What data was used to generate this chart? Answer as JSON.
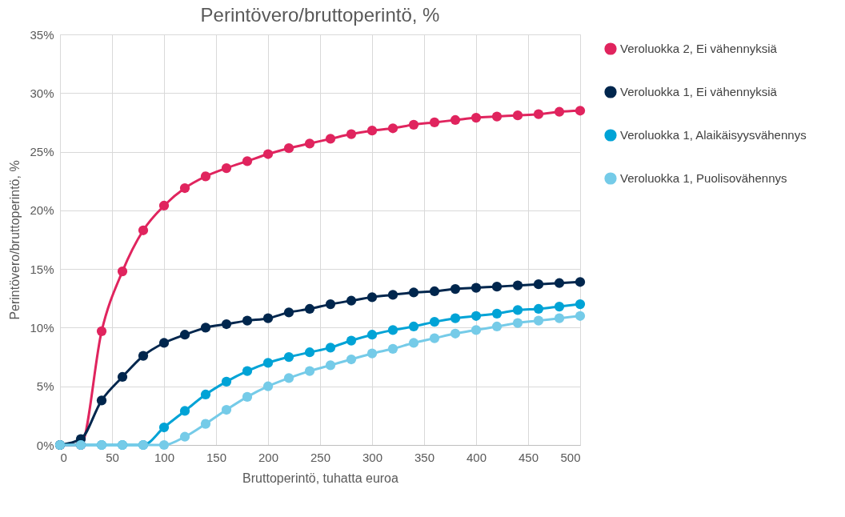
{
  "chart_data": {
    "type": "line",
    "title": "Perintövero/bruttoperintö, %",
    "xlabel": "Bruttoperintö, tuhatta euroa",
    "ylabel": "Perintövero/bruttoperintö, %",
    "x": [
      0,
      20,
      40,
      60,
      80,
      100,
      120,
      140,
      160,
      180,
      200,
      220,
      240,
      260,
      280,
      300,
      320,
      340,
      360,
      380,
      400,
      420,
      440,
      460,
      480,
      500
    ],
    "series": [
      {
        "name": "Veroluokka 2, Ei vähennyksiä",
        "color": "#e0245e",
        "values": [
          0,
          0,
          9.7,
          14.8,
          18.3,
          20.4,
          21.9,
          22.9,
          23.6,
          24.2,
          24.8,
          25.3,
          25.7,
          26.1,
          26.5,
          26.8,
          27.0,
          27.3,
          27.5,
          27.7,
          27.9,
          28.0,
          28.1,
          28.2,
          28.4,
          28.5
        ]
      },
      {
        "name": "Veroluokka 1, Ei vähennyksiä",
        "color": "#00264d",
        "values": [
          0,
          0.5,
          3.8,
          5.8,
          7.6,
          8.7,
          9.4,
          10.0,
          10.3,
          10.6,
          10.8,
          11.3,
          11.6,
          12.0,
          12.3,
          12.6,
          12.8,
          13.0,
          13.1,
          13.3,
          13.4,
          13.5,
          13.6,
          13.7,
          13.8,
          13.9
        ]
      },
      {
        "name": "Veroluokka 1, Alaikäisyysvähennys",
        "color": "#00a3d6",
        "values": [
          0,
          0,
          0,
          0,
          0,
          1.5,
          2.9,
          4.3,
          5.4,
          6.3,
          7.0,
          7.5,
          7.9,
          8.3,
          8.9,
          9.4,
          9.8,
          10.1,
          10.5,
          10.8,
          11.0,
          11.2,
          11.5,
          11.6,
          11.8,
          12.0
        ]
      },
      {
        "name": "Veroluokka 1, Puolisovähennys",
        "color": "#75cbe8",
        "values": [
          0,
          0,
          0,
          0,
          0,
          0,
          0.7,
          1.8,
          3.0,
          4.1,
          5.0,
          5.7,
          6.3,
          6.8,
          7.3,
          7.8,
          8.2,
          8.7,
          9.1,
          9.5,
          9.8,
          10.1,
          10.4,
          10.6,
          10.8,
          11.0
        ]
      }
    ],
    "xlim": [
      0,
      500
    ],
    "xticks": [
      0,
      50,
      100,
      150,
      200,
      250,
      300,
      350,
      400,
      450,
      500
    ],
    "ylim": [
      0,
      35
    ],
    "yticks": [
      {
        "value": 0,
        "label": "0%"
      },
      {
        "value": 5,
        "label": "5%"
      },
      {
        "value": 10,
        "label": "10%"
      },
      {
        "value": 15,
        "label": "15%"
      },
      {
        "value": 20,
        "label": "20%"
      },
      {
        "value": 25,
        "label": "25%"
      },
      {
        "value": 30,
        "label": "30%"
      },
      {
        "value": 35,
        "label": "35%"
      }
    ],
    "grid": true,
    "legend": "right",
    "marker": "circle",
    "line_style": "solid"
  }
}
